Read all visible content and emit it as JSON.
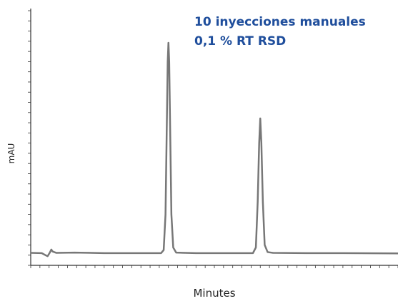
{
  "chart_data": {
    "type": "line",
    "annotations": [
      "10 inyecciones manuales",
      "0,1 % RT RSD"
    ],
    "xlabel": "Minutes",
    "ylabel": "mAU",
    "x": [
      0,
      3,
      4,
      4.6,
      5.2,
      5.6,
      6.0,
      7,
      12,
      20,
      30,
      35.5,
      36.2,
      36.7,
      37.0,
      37.3,
      37.5,
      37.7,
      38.0,
      38.3,
      38.8,
      39.6,
      45,
      55,
      60.5,
      61.3,
      61.8,
      62.2,
      62.5,
      62.8,
      63.2,
      63.7,
      64.5,
      66,
      75,
      85,
      100
    ],
    "series": [
      {
        "name": "mAU",
        "color": "#777777",
        "values": [
          4.9,
          4.8,
          4.0,
          3.6,
          5.0,
          6.2,
          5.4,
          4.9,
          5.0,
          4.8,
          4.8,
          4.8,
          6,
          20,
          50,
          80,
          87.4,
          80,
          50,
          20,
          7,
          5,
          4.8,
          4.8,
          4.8,
          7,
          25,
          48,
          57.7,
          48,
          25,
          8,
          5.2,
          4.9,
          4.8,
          4.8,
          4.7
        ]
      }
    ],
    "xlim": [
      0,
      100
    ],
    "ylim": [
      0,
      100
    ],
    "xticks": [
      0,
      2.5,
      5,
      7.5,
      10,
      12.5,
      15,
      17.5,
      20,
      22.5,
      25,
      27.5,
      30,
      32.5,
      35,
      37.5,
      40,
      42.5,
      45,
      47.5,
      50,
      52.5,
      55,
      57.5,
      60,
      62.5,
      65,
      67.5,
      70,
      72.5,
      75,
      77.5,
      80,
      82.5,
      85,
      87.5,
      90,
      92.5,
      95,
      97.5,
      100
    ],
    "yticks": [
      0,
      4,
      8,
      12,
      16,
      20,
      24,
      28,
      32,
      36,
      40,
      44,
      48,
      52,
      56,
      60,
      64,
      68,
      72,
      76,
      80,
      84,
      88,
      92,
      96,
      100
    ],
    "annotation_color": "#1f4e9c"
  }
}
